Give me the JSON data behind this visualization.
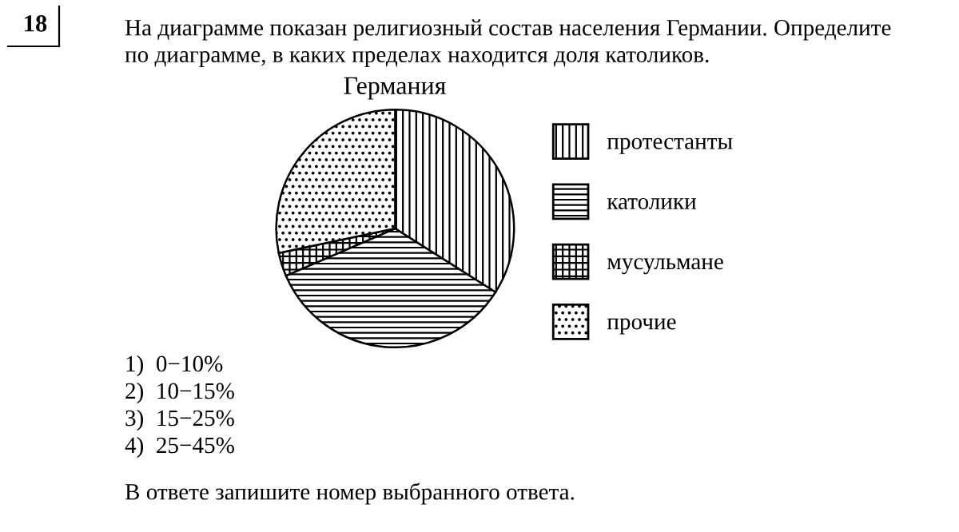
{
  "chart_data": {
    "type": "pie",
    "title": "Германия",
    "subtitle": "На диаграмме показан религиозный состав населения Германии. Определите\nпо диаграмме, в каких пределах находится доля католиков.",
    "categories": [
      "протестанты",
      "католики",
      "мусульмане",
      "прочие"
    ],
    "values": [
      34,
      34.5,
      3.2,
      28.3
    ],
    "colors": [
      "#000000",
      "#000000",
      "#000000",
      "#000000"
    ],
    "legend": "right",
    "annotations": [
      "18",
      "1)  0−10%",
      "2)  10−15%",
      "3)  15−25%",
      "4)  25−45%",
      "В ответе запишите номер выбранного ответа."
    ]
  }
}
